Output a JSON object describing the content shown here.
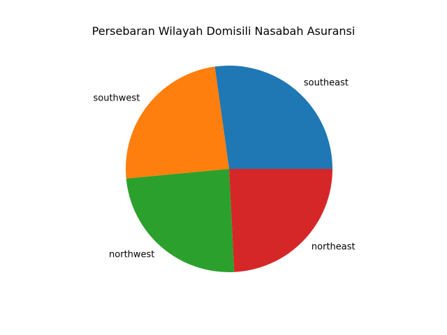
{
  "chart_data": {
    "type": "pie",
    "title": "Persebaran Wilayah Domisili Nasabah Asuransi",
    "categories": [
      "southeast",
      "southwest",
      "northwest",
      "northeast"
    ],
    "values": [
      364,
      325,
      325,
      324
    ],
    "colors": [
      "#1f77b4",
      "#ff7f0e",
      "#2ca02c",
      "#d62728"
    ],
    "start_angle_deg": 0,
    "direction": "counterclockwise",
    "legend": "none"
  }
}
